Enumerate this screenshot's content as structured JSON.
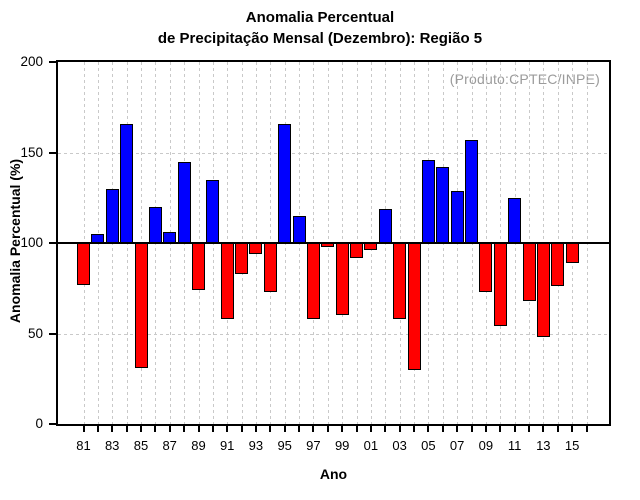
{
  "header": {
    "title_line1": "Anomalia Percentual",
    "title_line2": "de Precipitação Mensal (Dezembro): Região 5"
  },
  "chart_data": {
    "type": "bar",
    "title": "Anomalia Percentual de Precipitação Mensal (Dezembro): Região 5",
    "annotation": "(Produto:CPTEC/INPE)",
    "xlabel": "Ano",
    "ylabel": "Anomalia Percentual (%)",
    "ylim": [
      0,
      200
    ],
    "yticks": [
      0,
      50,
      100,
      150,
      200
    ],
    "baseline": 100,
    "grid": "dashed gray, vertical line at every year, horizontal at 50 and 150",
    "legend": "none; bars >= 100 are blue, bars < 100 are red",
    "categories": [
      "81",
      "82",
      "83",
      "84",
      "85",
      "86",
      "87",
      "88",
      "89",
      "90",
      "91",
      "92",
      "93",
      "94",
      "95",
      "96",
      "97",
      "98",
      "99",
      "00",
      "01",
      "02",
      "03",
      "04",
      "05",
      "06",
      "07",
      "08",
      "09",
      "10",
      "11",
      "12",
      "13",
      "14",
      "15"
    ],
    "values": [
      77,
      105,
      130,
      166,
      31,
      120,
      106,
      145,
      74,
      135,
      58,
      83,
      94,
      73,
      166,
      115,
      58,
      98,
      60,
      92,
      96,
      119,
      58,
      30,
      146,
      142,
      129,
      157,
      73,
      54,
      125,
      68,
      48,
      76,
      89
    ],
    "xtick_labels": [
      "81",
      "83",
      "85",
      "87",
      "89",
      "91",
      "93",
      "95",
      "97",
      "99",
      "01",
      "03",
      "05",
      "07",
      "09",
      "11",
      "13",
      "15"
    ],
    "unlabeled_trailing_ticks": [
      "16"
    ],
    "color_above": "#0000ff",
    "color_below": "#ff0000",
    "annotation_color": "#9b9b9b",
    "grid_color": "#c9c9c9"
  }
}
